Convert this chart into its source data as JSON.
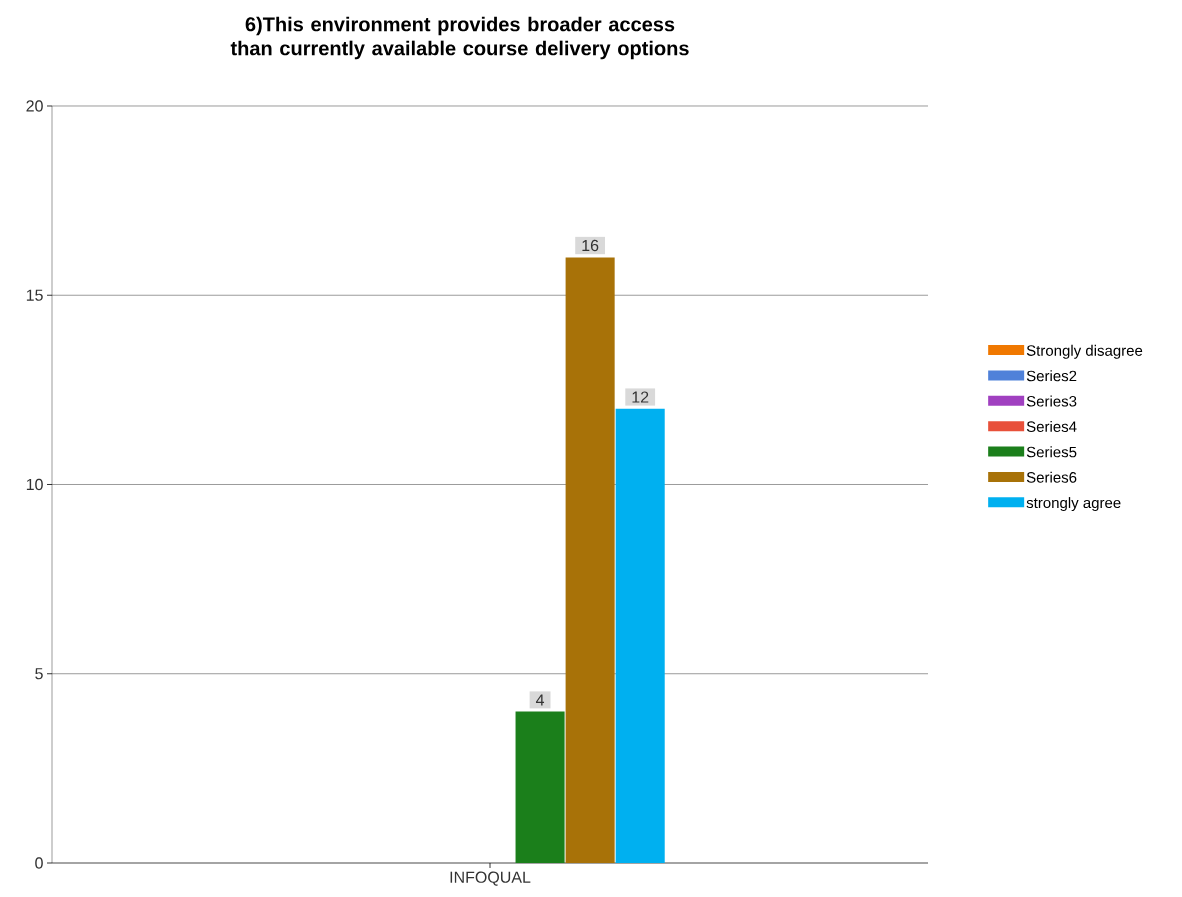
{
  "chart_data": {
    "type": "bar",
    "title": "6)This environment provides broader access than currently available course delivery options",
    "categories": [
      "INFOQUAL"
    ],
    "series": [
      {
        "name": "Strongly disagree",
        "color": "#f07800",
        "values": [
          0
        ],
        "value_labels": [
          null
        ]
      },
      {
        "name": "Series2",
        "color": "#4f81d9",
        "values": [
          0
        ],
        "value_labels": [
          null
        ]
      },
      {
        "name": "Series3",
        "color": "#a040c0",
        "values": [
          0
        ],
        "value_labels": [
          null
        ]
      },
      {
        "name": "Series4",
        "color": "#e8503a",
        "values": [
          0
        ],
        "value_labels": [
          null
        ]
      },
      {
        "name": "Series5",
        "color": "#1b7f1b",
        "values": [
          4
        ],
        "value_labels": [
          "4"
        ]
      },
      {
        "name": "Series6",
        "color": "#a87208",
        "values": [
          16
        ],
        "value_labels": [
          "16"
        ]
      },
      {
        "name": "strongly agree",
        "color": "#00b0f0",
        "values": [
          12
        ],
        "value_labels": [
          "12"
        ]
      }
    ],
    "ylim": [
      0,
      20
    ],
    "yticks": [
      0,
      5,
      10,
      15,
      20
    ],
    "grid": "y",
    "legend": "right"
  }
}
